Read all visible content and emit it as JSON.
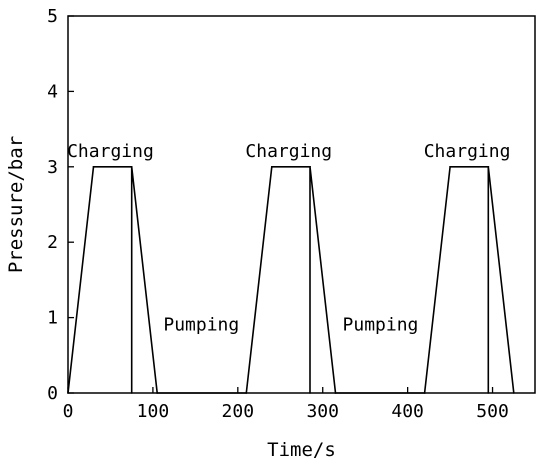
{
  "chart_data": {
    "type": "line",
    "xlabel": "Time/s",
    "ylabel": "Pressure/bar",
    "xlim": [
      0,
      550
    ],
    "ylim": [
      0,
      5
    ],
    "x_ticks": [
      0,
      100,
      200,
      300,
      400,
      500
    ],
    "y_ticks": [
      0,
      1,
      2,
      3,
      4,
      5
    ],
    "grid": false,
    "legend": "none",
    "series": [
      {
        "color": "#000000",
        "points": [
          [
            0,
            0
          ],
          [
            30,
            3
          ],
          [
            75,
            3
          ],
          [
            75,
            0
          ],
          [
            75,
            3
          ],
          [
            105,
            0
          ],
          [
            210,
            0
          ],
          [
            240,
            3
          ],
          [
            285,
            3
          ],
          [
            285,
            0
          ],
          [
            285,
            3
          ],
          [
            315,
            0
          ],
          [
            420,
            0
          ],
          [
            450,
            3
          ],
          [
            495,
            3
          ],
          [
            495,
            0
          ],
          [
            495,
            3
          ],
          [
            525,
            0
          ]
        ]
      }
    ],
    "annotations": [
      {
        "text": "Charging",
        "x": 50,
        "y": 3.13
      },
      {
        "text": "Charging",
        "x": 260,
        "y": 3.13
      },
      {
        "text": "Charging",
        "x": 470,
        "y": 3.13
      },
      {
        "text": "Pumping",
        "x": 157,
        "y": 0.83
      },
      {
        "text": "Pumping",
        "x": 368,
        "y": 0.83
      }
    ]
  }
}
